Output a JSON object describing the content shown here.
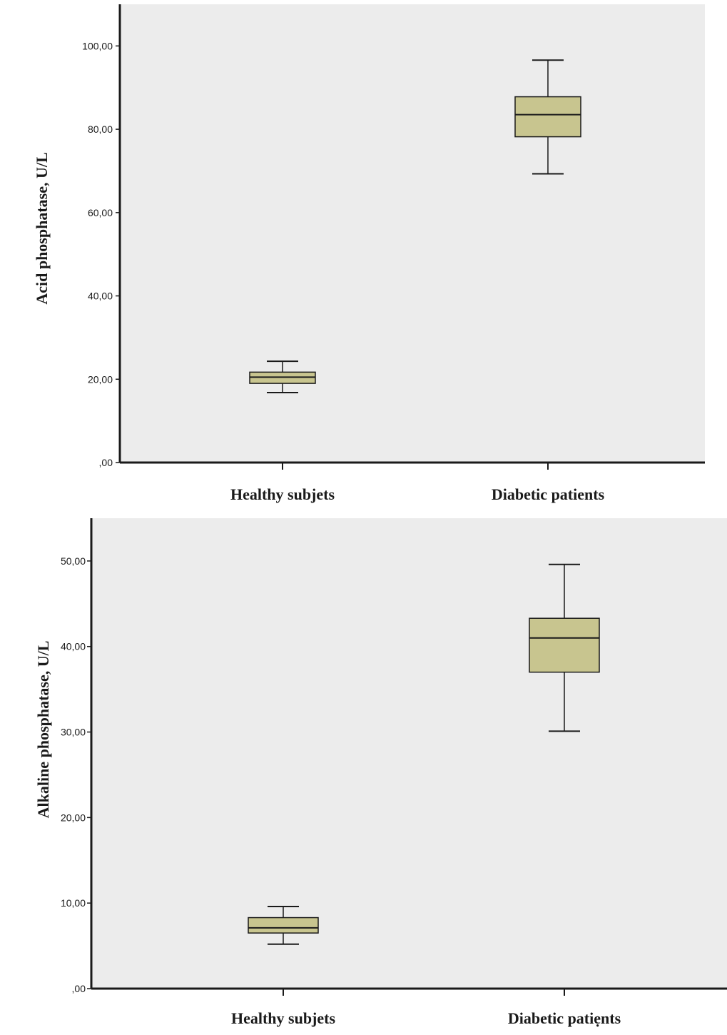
{
  "chart_data": [
    {
      "type": "box",
      "title": "",
      "xlabel": "",
      "ylabel": "Acid phosphatase, U/L",
      "ylim": [
        0,
        110
      ],
      "yticks": [
        0,
        20,
        40,
        60,
        80,
        100
      ],
      "ytick_labels": [
        ",00",
        "20,00",
        "40,00",
        "60,00",
        "80,00",
        "100,00"
      ],
      "grid": false,
      "colors": {
        "box_fill": "#c8c58f",
        "background": "#ececec",
        "line": "#1a1a1a"
      },
      "categories": [
        "Healthy subjets",
        "Diabetic patients"
      ],
      "boxes": [
        {
          "category": "Healthy subjets",
          "whisker_low": 16.8,
          "q1": 19.0,
          "median": 20.5,
          "q3": 21.7,
          "whisker_high": 24.3
        },
        {
          "category": "Diabetic patients",
          "whisker_low": 69.3,
          "q1": 78.2,
          "median": 83.5,
          "q3": 87.8,
          "whisker_high": 96.6
        }
      ]
    },
    {
      "type": "box",
      "title": "",
      "xlabel": "",
      "ylabel": "Alkaline phosphatase, U/L",
      "ylim": [
        0,
        55
      ],
      "yticks": [
        0,
        10,
        20,
        30,
        40,
        50
      ],
      "ytick_labels": [
        ",00",
        "10,00",
        "20,00",
        "30,00",
        "40,00",
        "50,00"
      ],
      "grid": false,
      "colors": {
        "box_fill": "#c8c58f",
        "background": "#ececec",
        "line": "#1a1a1a"
      },
      "categories": [
        "Healthy subjets",
        "Diabetic patiẹnts"
      ],
      "boxes": [
        {
          "category": "Healthy subjets",
          "whisker_low": 5.2,
          "q1": 6.5,
          "median": 7.1,
          "q3": 8.3,
          "whisker_high": 9.6
        },
        {
          "category": "Diabetic patiẹnts",
          "whisker_low": 30.1,
          "q1": 37.0,
          "median": 41.0,
          "q3": 43.3,
          "whisker_high": 49.6
        }
      ]
    }
  ]
}
